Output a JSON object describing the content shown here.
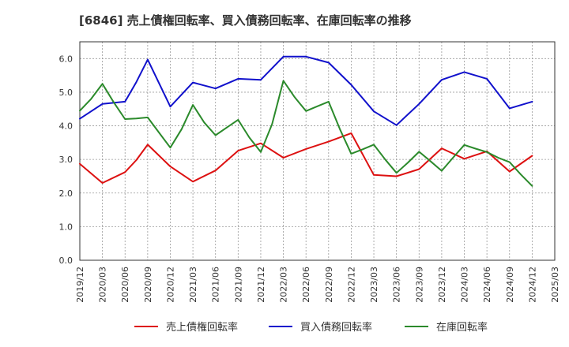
{
  "chart_data": {
    "type": "line",
    "title": "[6846]  売上債権回転率、買入債務回転率、在庫回転率の推移",
    "xlabel": "",
    "ylabel": "",
    "ylim": [
      0,
      6.5
    ],
    "yticks": [
      "0.0",
      "1.0",
      "2.0",
      "3.0",
      "4.0",
      "5.0",
      "6.0"
    ],
    "x_tick_labels": [
      "2019/12",
      "2020/03",
      "2020/06",
      "2020/09",
      "2020/12",
      "2021/03",
      "2021/06",
      "2021/09",
      "2021/12",
      "2022/03",
      "2022/06",
      "2022/09",
      "2022/12",
      "2023/03",
      "2023/06",
      "2023/09",
      "2023/12",
      "2024/03",
      "2024/06",
      "2024/09",
      "2024/12",
      "2025/03"
    ],
    "grid": true,
    "legend_position": "bottom",
    "series": [
      {
        "name": "売上債権回転率",
        "color": "#dd1111",
        "x": [
          0,
          1,
          2,
          2.5,
          3,
          4,
          5,
          6,
          7,
          8,
          9,
          10,
          11,
          12,
          13,
          14,
          15,
          16,
          17,
          18,
          19,
          20
        ],
        "values": [
          2.87,
          2.3,
          2.62,
          2.98,
          3.44,
          2.79,
          2.34,
          2.67,
          3.26,
          3.48,
          3.05,
          3.31,
          3.53,
          3.78,
          2.54,
          2.5,
          2.71,
          3.33,
          3.02,
          3.24,
          2.64,
          3.11
        ]
      },
      {
        "name": "買入債務回転率",
        "color": "#1111cc",
        "x": [
          0,
          1,
          2,
          2.5,
          3,
          4,
          5,
          6,
          7,
          8,
          9,
          10,
          11,
          12,
          13,
          14,
          15,
          16,
          17,
          18,
          19,
          20
        ],
        "values": [
          4.21,
          4.65,
          4.72,
          5.3,
          5.97,
          4.57,
          5.29,
          5.11,
          5.4,
          5.37,
          6.06,
          6.06,
          5.88,
          5.22,
          4.43,
          4.02,
          4.65,
          5.37,
          5.6,
          5.4,
          4.52,
          4.72
        ]
      },
      {
        "name": "在庫回転率",
        "color": "#2b8a2b",
        "x": [
          0,
          0.5,
          1,
          1.5,
          2,
          2.5,
          3,
          3.5,
          4,
          4.5,
          5,
          5.5,
          6,
          6.5,
          7,
          7.5,
          8,
          8.5,
          9,
          9.5,
          10,
          10.5,
          11,
          11.5,
          12,
          12.5,
          13,
          13.5,
          14,
          14.5,
          15,
          15.5,
          16,
          16.5,
          17,
          17.5,
          18,
          18.5,
          19,
          19.5,
          20
        ],
        "values": [
          4.45,
          4.8,
          5.25,
          4.7,
          4.2,
          4.22,
          4.25,
          3.8,
          3.35,
          3.9,
          4.62,
          4.1,
          3.72,
          3.95,
          4.18,
          3.65,
          3.22,
          4.05,
          5.34,
          4.85,
          4.44,
          4.58,
          4.72,
          3.9,
          3.17,
          3.3,
          3.44,
          3.0,
          2.6,
          2.9,
          3.23,
          2.95,
          2.66,
          3.05,
          3.43,
          3.32,
          3.22,
          3.05,
          2.92,
          2.55,
          2.21
        ]
      }
    ]
  }
}
